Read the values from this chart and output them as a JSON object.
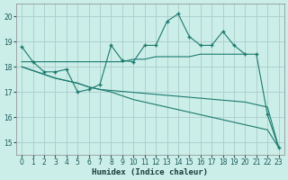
{
  "xlabel": "Humidex (Indice chaleur)",
  "bg_color": "#cceee8",
  "grid_color": "#aacccc",
  "line_color": "#1a7a6e",
  "xlim": [
    -0.5,
    23.5
  ],
  "ylim": [
    14.5,
    20.5
  ],
  "xticks": [
    0,
    1,
    2,
    3,
    4,
    5,
    6,
    7,
    8,
    9,
    10,
    11,
    12,
    13,
    14,
    15,
    16,
    17,
    18,
    19,
    20,
    21,
    22,
    23
  ],
  "yticks": [
    15,
    16,
    17,
    18,
    19,
    20
  ],
  "line1_x": [
    0,
    1,
    2,
    3,
    4,
    5,
    6,
    7,
    8,
    9,
    10,
    11,
    12,
    13,
    14,
    15,
    16,
    17,
    18,
    19,
    20,
    21,
    22,
    23
  ],
  "line1_y": [
    18.8,
    18.2,
    17.8,
    17.8,
    17.9,
    17.0,
    17.1,
    17.3,
    18.85,
    18.25,
    18.2,
    18.85,
    18.85,
    19.8,
    20.1,
    19.2,
    18.85,
    18.85,
    19.4,
    18.85,
    18.5,
    18.5,
    16.1,
    14.8
  ],
  "line2_x": [
    0,
    1,
    2,
    3,
    4,
    5,
    6,
    7,
    8,
    9,
    10,
    11,
    12,
    13,
    14,
    15,
    16,
    17,
    18,
    19,
    20
  ],
  "line2_y": [
    18.2,
    18.2,
    18.2,
    18.2,
    18.2,
    18.2,
    18.2,
    18.2,
    18.2,
    18.2,
    18.3,
    18.3,
    18.4,
    18.4,
    18.4,
    18.4,
    18.5,
    18.5,
    18.5,
    18.5,
    18.5
  ],
  "line3_x": [
    0,
    1,
    2,
    3,
    4,
    5,
    6,
    7,
    8,
    9,
    10,
    11,
    12,
    13,
    14,
    15,
    16,
    17,
    18,
    19,
    20,
    21,
    22,
    23
  ],
  "line3_y": [
    18.0,
    17.85,
    17.7,
    17.55,
    17.45,
    17.35,
    17.2,
    17.1,
    17.0,
    16.85,
    16.7,
    16.6,
    16.5,
    16.4,
    16.3,
    16.2,
    16.1,
    16.0,
    15.9,
    15.8,
    15.7,
    15.6,
    15.5,
    14.8
  ],
  "line4_x": [
    0,
    1,
    2,
    3,
    4,
    5,
    6,
    7,
    20,
    21,
    22,
    23
  ],
  "line4_y": [
    18.0,
    17.85,
    17.7,
    17.55,
    17.45,
    17.35,
    17.2,
    17.1,
    16.6,
    16.5,
    16.4,
    14.8
  ]
}
